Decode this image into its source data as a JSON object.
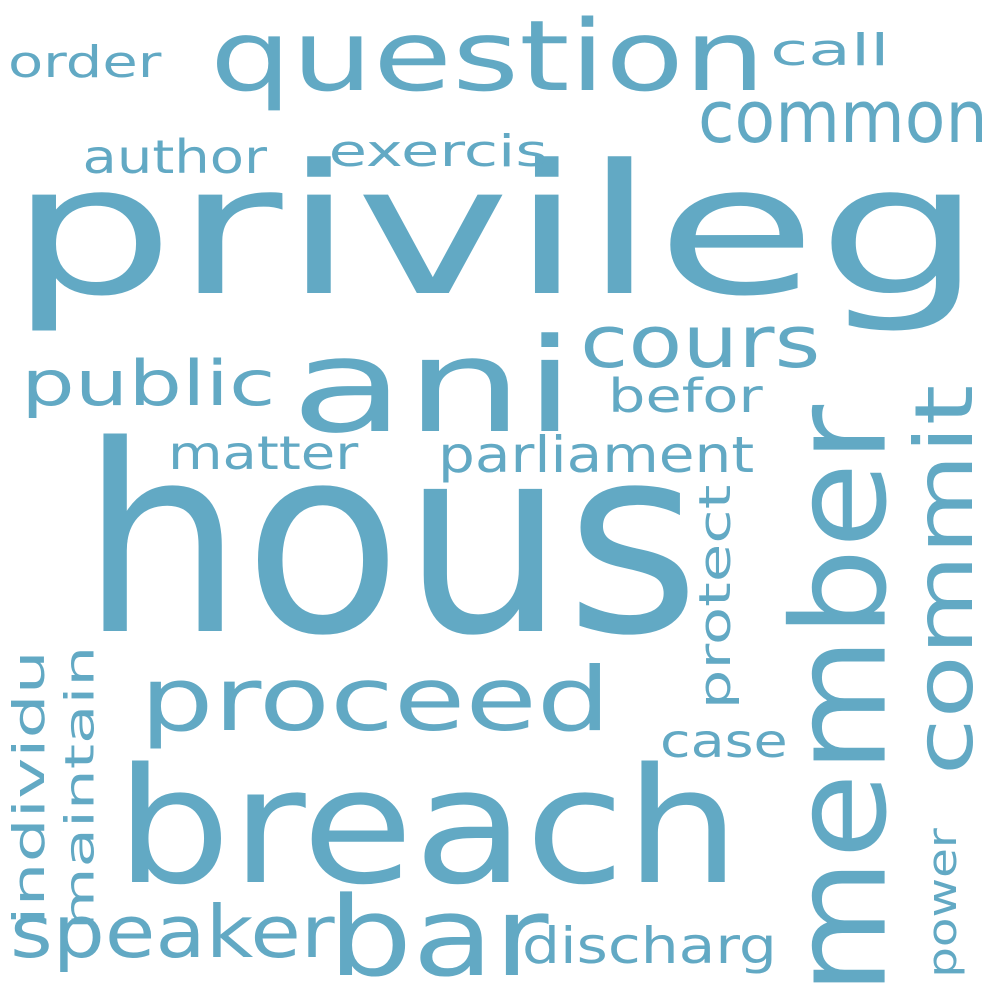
{
  "word_cloud": {
    "color": "#62a9c4",
    "background": "#ffffff",
    "words": [
      {
        "text": "hous",
        "rotate": false
      },
      {
        "text": "privileg",
        "rotate": false
      },
      {
        "text": "breach",
        "rotate": false
      },
      {
        "text": "member",
        "rotate": true
      },
      {
        "text": "ani",
        "rotate": false
      },
      {
        "text": "question",
        "rotate": false
      },
      {
        "text": "bar",
        "rotate": false
      },
      {
        "text": "commit",
        "rotate": true
      },
      {
        "text": "proceed",
        "rotate": false
      },
      {
        "text": "common",
        "rotate": false
      },
      {
        "text": "speaker",
        "rotate": false
      },
      {
        "text": "cours",
        "rotate": false
      },
      {
        "text": "public",
        "rotate": false
      },
      {
        "text": "parliament",
        "rotate": false
      },
      {
        "text": "discharg",
        "rotate": false
      },
      {
        "text": "author",
        "rotate": false
      },
      {
        "text": "exercis",
        "rotate": false
      },
      {
        "text": "matter",
        "rotate": false
      },
      {
        "text": "befor",
        "rotate": false
      },
      {
        "text": "protect",
        "rotate": true
      },
      {
        "text": "case",
        "rotate": false
      },
      {
        "text": "individu",
        "rotate": true
      },
      {
        "text": "maintain",
        "rotate": true
      },
      {
        "text": "power",
        "rotate": true
      },
      {
        "text": "order",
        "rotate": false
      },
      {
        "text": "call",
        "rotate": false
      }
    ]
  }
}
